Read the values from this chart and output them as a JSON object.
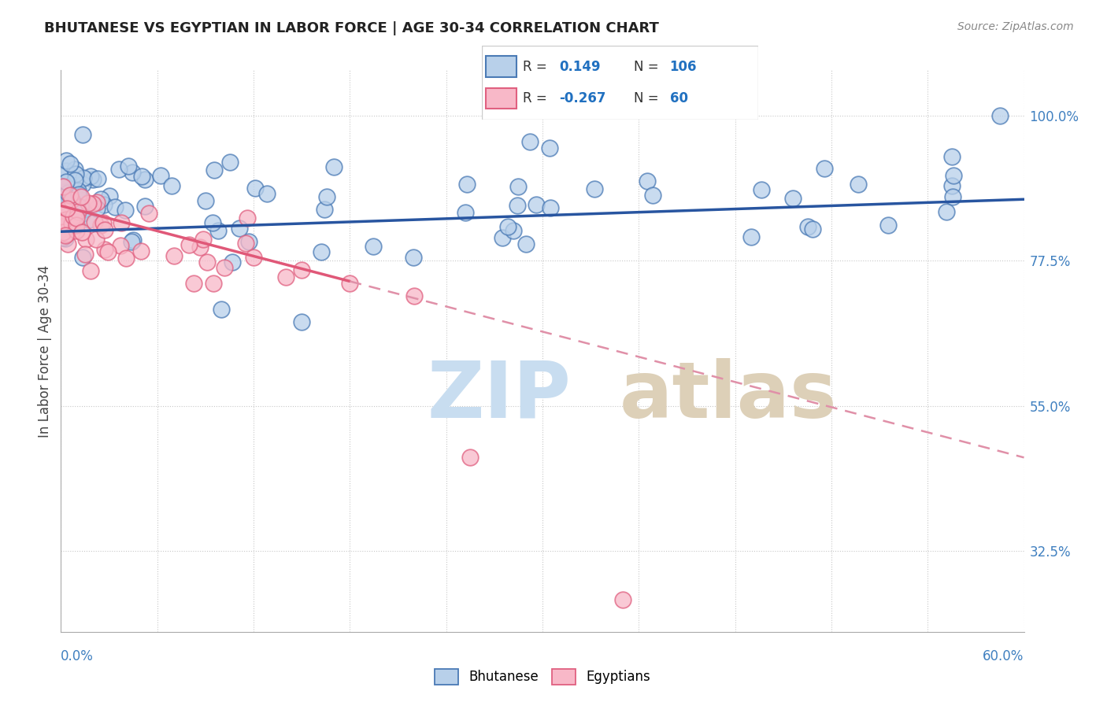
{
  "title": "BHUTANESE VS EGYPTIAN IN LABOR FORCE | AGE 30-34 CORRELATION CHART",
  "source_text": "Source: ZipAtlas.com",
  "ylabel": "In Labor Force | Age 30-34",
  "xmin": 0.0,
  "xmax": 60.0,
  "ymin": 20.0,
  "ymax": 107.0,
  "right_ytick_vals": [
    32.5,
    55.0,
    77.5,
    100.0
  ],
  "legend_r_blue": "0.149",
  "legend_n_blue": "106",
  "legend_r_pink": "-0.267",
  "legend_n_pink": "60",
  "blue_face": "#b8d0ea",
  "blue_edge": "#4a7ab5",
  "pink_face": "#f8b8c8",
  "pink_edge": "#e06080",
  "trend_blue_color": "#2855a0",
  "trend_pink_color": "#e05878",
  "trend_dashed_color": "#e090a8",
  "grid_color": "#c8c8c8",
  "watermark_zip_color": "#c8ddf0",
  "watermark_atlas_color": "#ddd0b8"
}
